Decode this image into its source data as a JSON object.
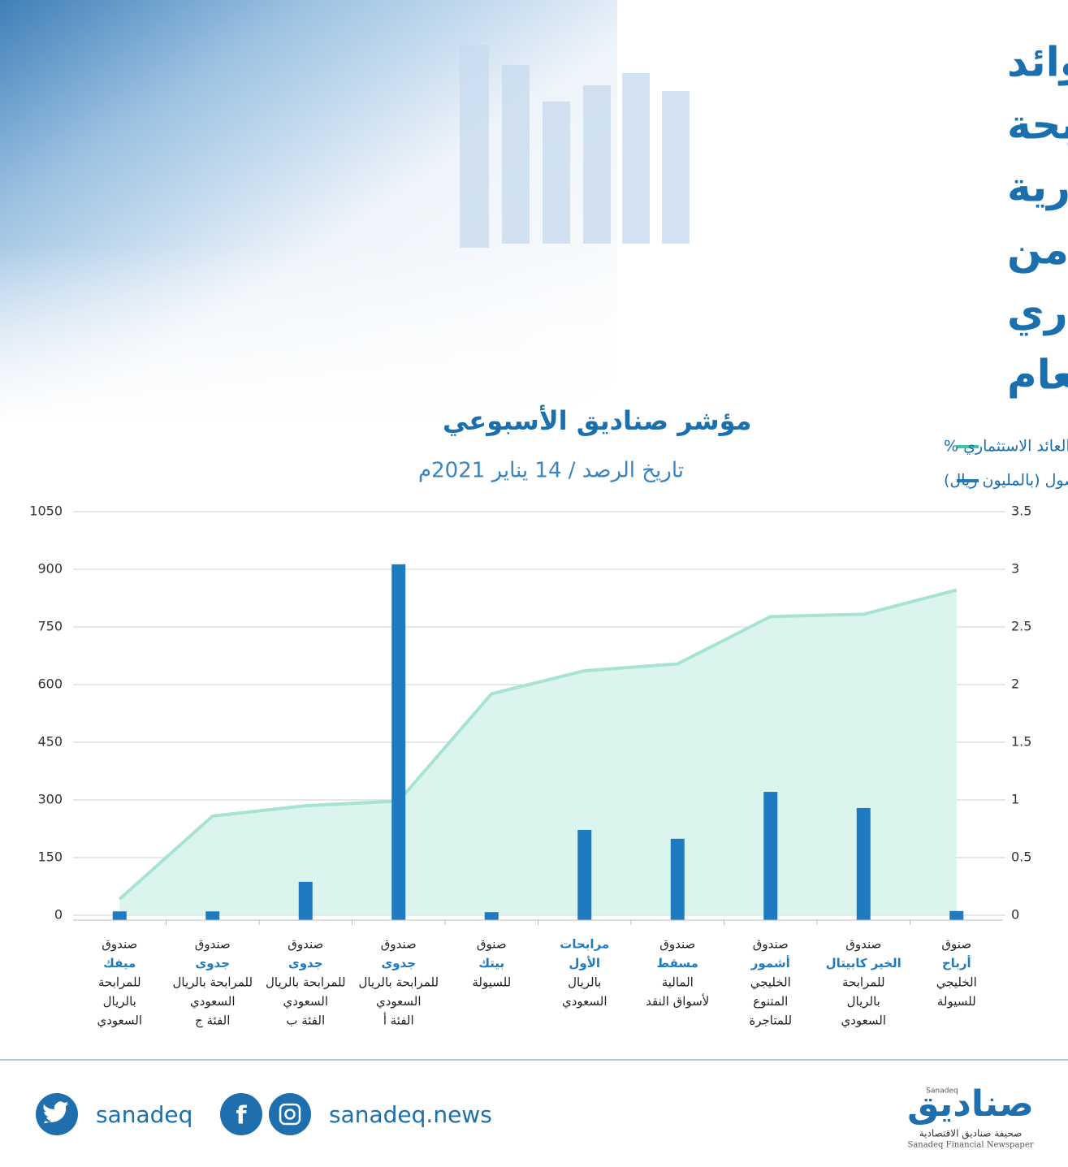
{
  "chart_data": {
    "type": "bar",
    "title": [
      "أعلى عوائد",
      "صناديق المرابحة",
      "والسيولة الاستثمارية",
      "بالسوق السعودي من",
      "حيث العائد الاستثماري",
      "منذ بداية العام"
    ],
    "subtitle": "مؤشر صناديق الأسبوعي",
    "date": "تاريخ الرصد / 14 يناير 2021م",
    "categories": [
      {
        "prefix": "صندوق",
        "name": [
          "ميفك"
        ],
        "rest": [
          "للمرابحة",
          "بالريال",
          "السعودي"
        ]
      },
      {
        "prefix": "صندوق",
        "name": [
          "جدوى"
        ],
        "rest": [
          "للمرابحة بالريال",
          "السعودي",
          "الفئة ج"
        ]
      },
      {
        "prefix": "صندوق",
        "name": [
          "جدوى"
        ],
        "rest": [
          "للمرابحة بالريال",
          "السعودي",
          "الفئة ب"
        ]
      },
      {
        "prefix": "صندوق",
        "name": [
          "جدوى"
        ],
        "rest": [
          "للمرابحة بالريال",
          "السعودي",
          "الفئة أ"
        ]
      },
      {
        "prefix": "صنوق",
        "name": [
          "بيتك"
        ],
        "rest": [
          "للسيولة"
        ]
      },
      {
        "name": [
          "مرابحات",
          "الأول"
        ],
        "rest": [
          "بالريال",
          "السعودي"
        ]
      },
      {
        "prefix": "صندوق",
        "name": [
          "مسقط"
        ],
        "rest": [
          "المالية",
          "لأسواق النقد"
        ]
      },
      {
        "prefix": "صندوق",
        "name": [
          "أشمور"
        ],
        "rest": [
          "الخليجي",
          "المتنوع",
          "للمتاجرة"
        ]
      },
      {
        "prefix": "صندوق",
        "name": [
          "الخير كابيتال"
        ],
        "rest": [
          "للمرابحة",
          "بالريال",
          "السعودي"
        ]
      },
      {
        "prefix": "صنوق",
        "name": [
          "أرباح"
        ],
        "rest": [
          "الخليجي",
          "للسيولة"
        ]
      }
    ],
    "series": [
      {
        "name": "العائد الاستثماري %",
        "type": "area",
        "axis": "y2",
        "color": "#a6e3d3",
        "fill": "#dcf4ee",
        "values": [
          0.14,
          0.86,
          0.95,
          0.99,
          1.92,
          2.12,
          2.18,
          2.59,
          2.61,
          2.82
        ]
      },
      {
        "name": "حجم الأصول (بالمليون ريال)",
        "type": "bar",
        "color": "#1f7bbf",
        "values": [
          10,
          10,
          87,
          913,
          8,
          222,
          199,
          321,
          279,
          11
        ]
      }
    ],
    "ylim": [
      0,
      1050
    ],
    "yticks": [
      0,
      150,
      300,
      450,
      600,
      750,
      900,
      1050
    ],
    "y2lim": [
      0,
      3.5
    ],
    "y2ticks": [
      0,
      0.5,
      1,
      1.5,
      2,
      2.5,
      3,
      3.5
    ],
    "grid": true
  },
  "footer": {
    "twitter": "sanadeq",
    "website": "sanadeq.news",
    "logo": "صناديق",
    "logo_en": "Sanadeq",
    "tagline": "صحيفة صناديق الاقتصادية",
    "tagline_en": "Sanadeq Financial Newspaper"
  }
}
